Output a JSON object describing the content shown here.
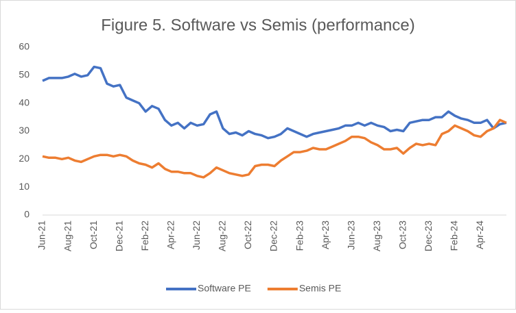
{
  "chart_data": {
    "type": "line",
    "title": "Figure 5. Software vs Semis (performance)",
    "categories": [
      "Jun-21",
      null,
      null,
      null,
      "Aug-21",
      null,
      null,
      null,
      "Oct-21",
      null,
      null,
      null,
      "Dec-21",
      null,
      null,
      null,
      "Feb-22",
      null,
      null,
      null,
      "Apr-22",
      null,
      null,
      null,
      "Jun-22",
      null,
      null,
      null,
      "Aug-22",
      null,
      null,
      null,
      "Oct-22",
      null,
      null,
      null,
      "Dec-22",
      null,
      null,
      null,
      "Feb-23",
      null,
      null,
      null,
      "Apr-23",
      null,
      null,
      null,
      "Jun-23",
      null,
      null,
      null,
      "Aug-23",
      null,
      null,
      null,
      "Oct-23",
      null,
      null,
      null,
      "Dec-23",
      null,
      null,
      null,
      "Feb-24",
      null,
      null,
      null,
      "Apr-24",
      null,
      null,
      null,
      null
    ],
    "series": [
      {
        "name": "Software PE",
        "color": "#4472c4",
        "values": [
          48,
          49,
          49,
          49,
          49.5,
          50.5,
          49.5,
          50,
          53,
          52.5,
          47,
          46,
          46.5,
          42,
          41,
          40,
          37,
          39,
          38,
          34,
          32,
          33,
          31,
          33,
          32,
          32.5,
          36,
          37,
          31,
          29,
          29.5,
          28.5,
          30,
          29,
          28.5,
          27.5,
          28,
          29,
          31,
          30,
          29,
          28,
          29,
          29.5,
          30,
          30.5,
          31,
          32,
          32,
          33,
          32,
          33,
          32,
          31.5,
          30,
          30.5,
          30,
          33,
          33.5,
          34,
          34,
          35,
          35,
          37,
          35.5,
          34.5,
          34,
          33,
          33,
          34,
          31,
          32.5,
          33
        ]
      },
      {
        "name": "Semis PE",
        "color": "#ed7d31",
        "values": [
          21,
          20.5,
          20.5,
          20,
          20.5,
          19.5,
          19,
          20,
          21,
          21.5,
          21.5,
          21,
          21.5,
          21,
          19.5,
          18.5,
          18,
          17,
          18.5,
          16.5,
          15.5,
          15.5,
          15,
          15,
          14,
          13.5,
          15,
          17,
          16,
          15,
          14.5,
          14,
          14.5,
          17.5,
          18,
          18,
          17.5,
          19.5,
          21,
          22.5,
          22.5,
          23,
          24,
          23.5,
          23.5,
          24.5,
          25.5,
          26.5,
          28,
          28,
          27.5,
          26,
          25,
          23.5,
          23.5,
          24,
          22,
          24,
          25.5,
          25,
          25.5,
          25,
          29,
          30,
          32,
          31,
          30,
          28.5,
          28,
          30,
          31,
          34,
          33
        ]
      }
    ],
    "ylim": [
      0,
      60
    ],
    "yticks": [
      0,
      10,
      20,
      30,
      40,
      50,
      60
    ],
    "legend": "bottom"
  }
}
